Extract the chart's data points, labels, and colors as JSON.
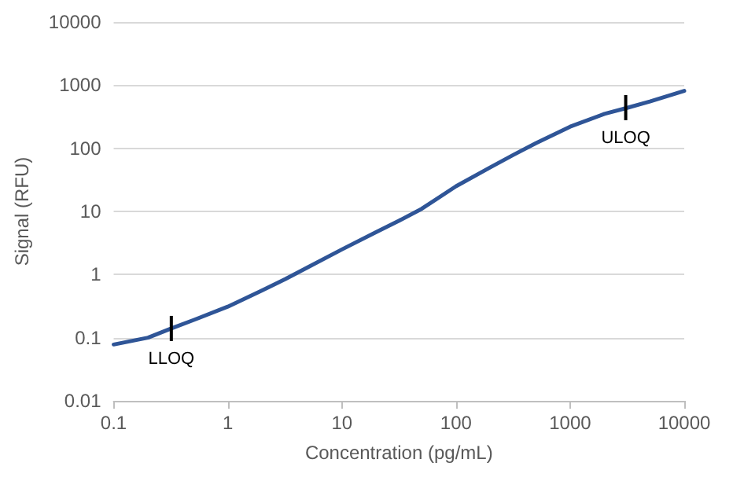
{
  "chart_data": {
    "type": "line",
    "xlabel": "Concentration (pg/mL)",
    "ylabel": "Signal (RFU)",
    "log": "xy",
    "grid": "y",
    "marker": "none",
    "line_style": "solid",
    "x": [
      0.1,
      0.2,
      0.32,
      0.5,
      1,
      2,
      3.2,
      5,
      10,
      20,
      32,
      50,
      100,
      200,
      320,
      500,
      1000,
      2000,
      3200,
      5000,
      10000
    ],
    "series": [
      {
        "color": "#2f5597",
        "values": [
          0.078,
          0.1,
          0.14,
          0.19,
          0.31,
          0.56,
          0.85,
          1.3,
          2.5,
          4.7,
          7.2,
          11,
          25,
          50,
          79,
          120,
          220,
          350,
          440,
          550,
          810
        ]
      }
    ],
    "xlim": [
      0.1,
      10000
    ],
    "xticks": [
      0.1,
      1,
      10,
      100,
      1000,
      10000
    ],
    "ylim": [
      0.01,
      10000
    ],
    "yticks": [
      0.01,
      0.1,
      1,
      10,
      100,
      1000,
      10000
    ],
    "annotations": [
      {
        "text": "LLOQ",
        "x": 0.32,
        "y": 0.14
      },
      {
        "text": "ULOQ",
        "x": 3070,
        "y": 440
      }
    ]
  }
}
